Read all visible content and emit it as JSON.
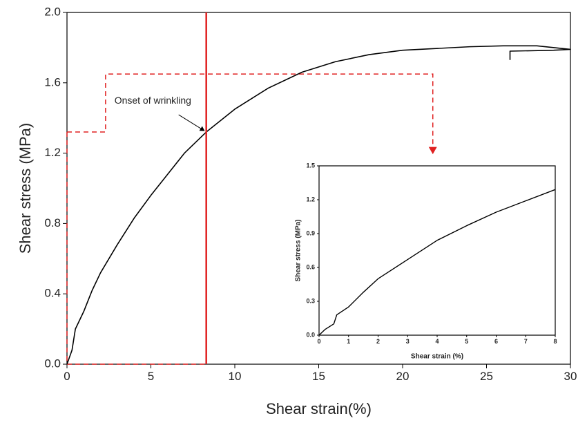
{
  "chart_data": [
    {
      "type": "line",
      "xlabel": "Shear strain(%)",
      "ylabel": "Shear stress (MPa)",
      "x": [
        0,
        0.3,
        0.5,
        1,
        1.5,
        2,
        3,
        4,
        5,
        6,
        7,
        8.3,
        10,
        12,
        14,
        16,
        18,
        20,
        22,
        24,
        26,
        28,
        30,
        29,
        26.4,
        26.4
      ],
      "series": [
        {
          "color": "#000000",
          "values": [
            0,
            0.08,
            0.2,
            0.3,
            0.42,
            0.52,
            0.68,
            0.83,
            0.96,
            1.08,
            1.2,
            1.32,
            1.45,
            1.57,
            1.66,
            1.72,
            1.76,
            1.785,
            1.795,
            1.805,
            1.81,
            1.81,
            1.79,
            1.785,
            1.78,
            1.73
          ]
        }
      ],
      "xlim": [
        0,
        30
      ],
      "xticks": [
        0,
        5,
        10,
        15,
        20,
        25,
        30
      ],
      "ylim": [
        0,
        2
      ],
      "yticks": [
        {
          "value": 0,
          "label": "0.0"
        },
        0.4,
        0.8,
        1.2,
        1.6,
        {
          "value": 2,
          "label": "2.0"
        }
      ],
      "vline": {
        "x": 8.3,
        "color": "#e02020"
      },
      "guides": {
        "color": "#e02020",
        "paths": [
          {
            "x": [
              0,
              0,
              8.3
            ],
            "y": [
              1.32,
              0,
              0
            ]
          },
          {
            "x": [
              0,
              2.3,
              2.3,
              21.8,
              21.8
            ],
            "y": [
              1.32,
              1.32,
              1.65,
              1.65,
              1.2
            ]
          }
        ]
      },
      "annotation": {
        "text": "Onset of wrinkling",
        "x": 8.3,
        "y": 1.32
      }
    },
    {
      "type": "line",
      "xlabel": "Shear strain (%)",
      "ylabel": "Shear stress (MPa)",
      "x": [
        0,
        0.2,
        0.5,
        0.6,
        1,
        1.5,
        2,
        3,
        4,
        5,
        6,
        7,
        8
      ],
      "series": [
        {
          "color": "#000000",
          "values": [
            0,
            0.05,
            0.1,
            0.18,
            0.25,
            0.38,
            0.5,
            0.67,
            0.84,
            0.97,
            1.09,
            1.19,
            1.29
          ]
        }
      ],
      "xlim": [
        0,
        8
      ],
      "xticks": [
        0,
        1,
        2,
        3,
        4,
        5,
        6,
        7,
        8
      ],
      "ylim": [
        0,
        1.5
      ],
      "yticks": [
        {
          "value": 0,
          "label": "0.0"
        },
        0.3,
        0.6,
        0.9,
        1.2,
        1.5
      ]
    }
  ]
}
